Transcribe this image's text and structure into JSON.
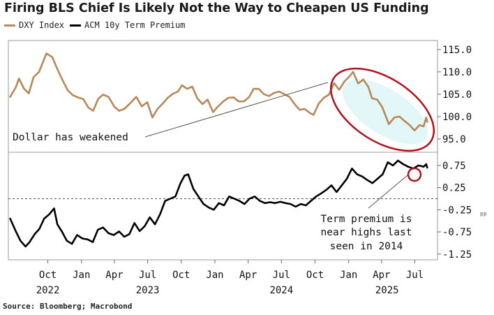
{
  "title": "Firing BLS Chief Is Likely Not the Way to Cheapen US Funding",
  "source": "Source: Bloomberg; Macrobond",
  "colors": {
    "dxy": "#b5895a",
    "acm": "#000000",
    "ellipse": "#b0121b",
    "highlight": "#7fd8e0"
  },
  "annotations": {
    "dollar": "Dollar has weakened",
    "term_line1": "Term premium is",
    "term_line2": "near highs last",
    "term_line3": "seen in 2014"
  },
  "chart_data": [
    {
      "type": "line",
      "legend_placement": "top-left",
      "series": [
        {
          "name": "DXY Index",
          "unit": "index",
          "points": [
            [
              "2022-06-20",
              104.4
            ],
            [
              "2022-07-05",
              106.5
            ],
            [
              "2022-07-14",
              108.5
            ],
            [
              "2022-07-28",
              106.2
            ],
            [
              "2022-08-10",
              105.2
            ],
            [
              "2022-08-23",
              108.8
            ],
            [
              "2022-09-07",
              110.0
            ],
            [
              "2022-09-27",
              114.1
            ],
            [
              "2022-10-13",
              113.3
            ],
            [
              "2022-10-27",
              110.6
            ],
            [
              "2022-11-10",
              108.2
            ],
            [
              "2022-11-24",
              105.9
            ],
            [
              "2022-12-08",
              104.8
            ],
            [
              "2022-12-22",
              104.3
            ],
            [
              "2023-01-06",
              103.9
            ],
            [
              "2023-01-20",
              102.0
            ],
            [
              "2023-02-02",
              101.3
            ],
            [
              "2023-02-16",
              104.0
            ],
            [
              "2023-03-01",
              104.9
            ],
            [
              "2023-03-16",
              104.4
            ],
            [
              "2023-04-01",
              102.2
            ],
            [
              "2023-04-14",
              101.3
            ],
            [
              "2023-04-28",
              101.7
            ],
            [
              "2023-05-12",
              102.8
            ],
            [
              "2023-05-31",
              104.4
            ],
            [
              "2023-06-15",
              102.3
            ],
            [
              "2023-06-30",
              103.2
            ],
            [
              "2023-07-14",
              99.8
            ],
            [
              "2023-07-28",
              101.7
            ],
            [
              "2023-08-11",
              102.9
            ],
            [
              "2023-08-25",
              104.2
            ],
            [
              "2023-09-08",
              105.1
            ],
            [
              "2023-09-22",
              105.6
            ],
            [
              "2023-10-03",
              107.0
            ],
            [
              "2023-10-17",
              106.2
            ],
            [
              "2023-10-31",
              106.7
            ],
            [
              "2023-11-14",
              104.1
            ],
            [
              "2023-11-28",
              102.8
            ],
            [
              "2023-12-12",
              103.8
            ],
            [
              "2023-12-27",
              101.0
            ],
            [
              "2024-01-10",
              102.3
            ],
            [
              "2024-01-24",
              103.4
            ],
            [
              "2024-02-07",
              104.2
            ],
            [
              "2024-02-21",
              104.3
            ],
            [
              "2024-03-06",
              103.4
            ],
            [
              "2024-03-20",
              103.4
            ],
            [
              "2024-04-03",
              104.3
            ],
            [
              "2024-04-16",
              106.2
            ],
            [
              "2024-04-30",
              106.2
            ],
            [
              "2024-05-14",
              105.0
            ],
            [
              "2024-05-28",
              104.6
            ],
            [
              "2024-06-11",
              105.3
            ],
            [
              "2024-06-25",
              105.6
            ],
            [
              "2024-07-09",
              105.0
            ],
            [
              "2024-07-23",
              104.4
            ],
            [
              "2024-08-06",
              102.8
            ],
            [
              "2024-08-20",
              101.5
            ],
            [
              "2024-09-03",
              101.7
            ],
            [
              "2024-09-17",
              100.8
            ],
            [
              "2024-09-27",
              100.4
            ],
            [
              "2024-10-11",
              102.9
            ],
            [
              "2024-10-25",
              104.2
            ],
            [
              "2024-11-08",
              104.9
            ],
            [
              "2024-11-22",
              107.5
            ],
            [
              "2024-12-06",
              106.0
            ],
            [
              "2024-12-20",
              107.8
            ],
            [
              "2025-01-03",
              109.0
            ],
            [
              "2025-01-13",
              110.0
            ],
            [
              "2025-01-27",
              107.4
            ],
            [
              "2025-02-10",
              108.3
            ],
            [
              "2025-02-24",
              106.6
            ],
            [
              "2025-03-06",
              104.1
            ],
            [
              "2025-03-20",
              103.8
            ],
            [
              "2025-04-03",
              102.1
            ],
            [
              "2025-04-21",
              98.3
            ],
            [
              "2025-05-06",
              99.8
            ],
            [
              "2025-05-20",
              100.0
            ],
            [
              "2025-06-03",
              99.0
            ],
            [
              "2025-06-17",
              98.1
            ],
            [
              "2025-06-30",
              96.9
            ],
            [
              "2025-07-14",
              98.1
            ],
            [
              "2025-07-25",
              97.8
            ],
            [
              "2025-08-01",
              99.8
            ],
            [
              "2025-08-04",
              98.8
            ]
          ]
        },
        {
          "name": "ACM 10y Term Premium",
          "unit": "percentage points",
          "points": [
            [
              "2022-06-20",
              -0.45
            ],
            [
              "2022-07-05",
              -0.73
            ],
            [
              "2022-07-18",
              -0.95
            ],
            [
              "2022-08-01",
              -1.08
            ],
            [
              "2022-08-12",
              -0.98
            ],
            [
              "2022-08-26",
              -0.8
            ],
            [
              "2022-09-08",
              -0.68
            ],
            [
              "2022-09-21",
              -0.45
            ],
            [
              "2022-10-05",
              -0.35
            ],
            [
              "2022-10-18",
              -0.22
            ],
            [
              "2022-10-27",
              -0.58
            ],
            [
              "2022-11-09",
              -0.75
            ],
            [
              "2022-11-22",
              -0.95
            ],
            [
              "2022-12-06",
              -1.02
            ],
            [
              "2022-12-20",
              -0.82
            ],
            [
              "2023-01-04",
              -0.9
            ],
            [
              "2023-01-18",
              -0.92
            ],
            [
              "2023-02-01",
              -0.98
            ],
            [
              "2023-02-15",
              -0.7
            ],
            [
              "2023-03-01",
              -0.65
            ],
            [
              "2023-03-16",
              -0.78
            ],
            [
              "2023-03-30",
              -0.82
            ],
            [
              "2023-04-14",
              -0.74
            ],
            [
              "2023-04-28",
              -0.86
            ],
            [
              "2023-05-12",
              -0.8
            ],
            [
              "2023-05-26",
              -0.55
            ],
            [
              "2023-06-09",
              -0.73
            ],
            [
              "2023-06-23",
              -0.62
            ],
            [
              "2023-07-07",
              -0.42
            ],
            [
              "2023-07-21",
              -0.58
            ],
            [
              "2023-08-04",
              -0.35
            ],
            [
              "2023-08-18",
              -0.05
            ],
            [
              "2023-09-01",
              0.0
            ],
            [
              "2023-09-15",
              0.05
            ],
            [
              "2023-09-29",
              0.35
            ],
            [
              "2023-10-10",
              0.52
            ],
            [
              "2023-10-20",
              0.55
            ],
            [
              "2023-11-03",
              0.22
            ],
            [
              "2023-11-17",
              0.05
            ],
            [
              "2023-12-01",
              -0.12
            ],
            [
              "2023-12-15",
              -0.2
            ],
            [
              "2023-12-29",
              -0.25
            ],
            [
              "2024-01-12",
              -0.1
            ],
            [
              "2024-01-26",
              -0.15
            ],
            [
              "2024-02-09",
              0.05
            ],
            [
              "2024-02-23",
              0.0
            ],
            [
              "2024-03-08",
              -0.05
            ],
            [
              "2024-03-22",
              -0.12
            ],
            [
              "2024-04-05",
              0.0
            ],
            [
              "2024-04-19",
              0.05
            ],
            [
              "2024-05-03",
              -0.05
            ],
            [
              "2024-05-17",
              -0.1
            ],
            [
              "2024-05-31",
              -0.08
            ],
            [
              "2024-06-14",
              -0.1
            ],
            [
              "2024-06-28",
              -0.07
            ],
            [
              "2024-07-12",
              -0.1
            ],
            [
              "2024-07-26",
              -0.12
            ],
            [
              "2024-08-09",
              -0.18
            ],
            [
              "2024-08-23",
              -0.12
            ],
            [
              "2024-09-06",
              -0.15
            ],
            [
              "2024-09-20",
              -0.05
            ],
            [
              "2024-10-04",
              0.05
            ],
            [
              "2024-10-18",
              0.12
            ],
            [
              "2024-11-01",
              0.2
            ],
            [
              "2024-11-15",
              0.3
            ],
            [
              "2024-11-29",
              0.15
            ],
            [
              "2024-12-13",
              0.3
            ],
            [
              "2024-12-27",
              0.45
            ],
            [
              "2025-01-10",
              0.68
            ],
            [
              "2025-01-24",
              0.55
            ],
            [
              "2025-02-07",
              0.5
            ],
            [
              "2025-02-21",
              0.42
            ],
            [
              "2025-03-07",
              0.35
            ],
            [
              "2025-03-21",
              0.45
            ],
            [
              "2025-04-04",
              0.55
            ],
            [
              "2025-04-18",
              0.82
            ],
            [
              "2025-05-02",
              0.75
            ],
            [
              "2025-05-16",
              0.86
            ],
            [
              "2025-05-30",
              0.78
            ],
            [
              "2025-06-13",
              0.72
            ],
            [
              "2025-06-27",
              0.68
            ],
            [
              "2025-07-11",
              0.75
            ],
            [
              "2025-07-25",
              0.72
            ],
            [
              "2025-08-01",
              0.78
            ],
            [
              "2025-08-04",
              0.7
            ]
          ]
        }
      ],
      "x_axis": {
        "range": [
          "2022-06-15",
          "2025-09-01"
        ],
        "months": [
          {
            "label": "Oct",
            "date": "2022-10-01"
          },
          {
            "label": "Jan",
            "date": "2023-01-01"
          },
          {
            "label": "Apr",
            "date": "2023-04-01"
          },
          {
            "label": "Jul",
            "date": "2023-07-01"
          },
          {
            "label": "Oct",
            "date": "2023-10-01"
          },
          {
            "label": "Jan",
            "date": "2024-01-01"
          },
          {
            "label": "Apr",
            "date": "2024-04-01"
          },
          {
            "label": "Jul",
            "date": "2024-07-01"
          },
          {
            "label": "Oct",
            "date": "2024-10-01"
          },
          {
            "label": "Jan",
            "date": "2025-01-01"
          },
          {
            "label": "Apr",
            "date": "2025-04-01"
          },
          {
            "label": "Jul",
            "date": "2025-07-01"
          }
        ],
        "years": [
          {
            "label": "2022",
            "date": "2022-10-01"
          },
          {
            "label": "2023",
            "date": "2023-07-01"
          },
          {
            "label": "2024",
            "date": "2024-07-01"
          },
          {
            "label": "2025",
            "date": "2025-04-16"
          }
        ]
      },
      "panels": [
        {
          "series": "DXY Index",
          "y_range": [
            92.5,
            117.0
          ],
          "ticks": [
            {
              "v": 115.0,
              "label": "115.0"
            },
            {
              "v": 110.0,
              "label": "110.0"
            },
            {
              "v": 105.0,
              "label": "105.0"
            },
            {
              "v": 100.0,
              "label": "100.0"
            },
            {
              "v": 95.0,
              "label": "95.0"
            }
          ]
        },
        {
          "series": "ACM 10y Term Premium",
          "y_range": [
            -1.38,
            1.0
          ],
          "axis_suffix": "pp",
          "zero_line": true,
          "ticks": [
            {
              "v": 0.75,
              "label": "0.75"
            },
            {
              "v": 0.25,
              "label": "0.25"
            },
            {
              "v": -0.25,
              "label": "-0.25"
            },
            {
              "v": -0.75,
              "label": "-0.75"
            },
            {
              "v": -1.25,
              "label": "-1.25"
            }
          ]
        }
      ]
    }
  ]
}
